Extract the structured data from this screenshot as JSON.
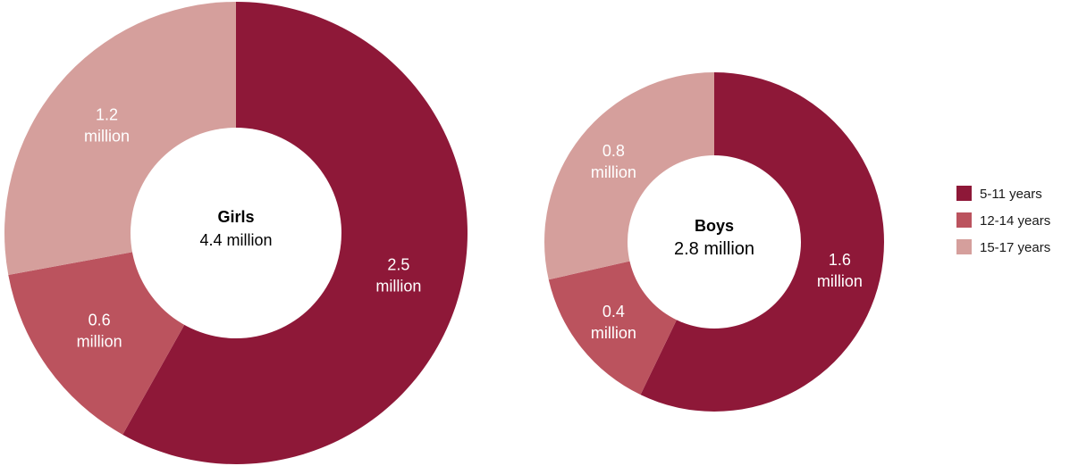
{
  "chart_data": [
    {
      "type": "pie",
      "donut": true,
      "center_title": "Girls",
      "center_value": "4.4 million",
      "slices": [
        {
          "category": "5-11 years",
          "value": 2.5,
          "label_lines": [
            "2.5",
            "million"
          ]
        },
        {
          "category": "12-14 years",
          "value": 0.6,
          "label_lines": [
            "0.6",
            "million"
          ]
        },
        {
          "category": "15-17 years",
          "value": 1.2,
          "label_lines": [
            "1.2",
            "million"
          ]
        }
      ]
    },
    {
      "type": "pie",
      "donut": true,
      "center_title": "Boys",
      "center_value": "2.8 million",
      "slices": [
        {
          "category": "5-11 years",
          "value": 1.6,
          "label_lines": [
            "1.6",
            "million"
          ]
        },
        {
          "category": "12-14 years",
          "value": 0.4,
          "label_lines": [
            "0.4",
            "million"
          ]
        },
        {
          "category": "15-17 years",
          "value": 0.8,
          "label_lines": [
            "0.8",
            "million"
          ]
        }
      ]
    }
  ],
  "legend": {
    "placement": "right",
    "items": [
      {
        "label": "5-11 years",
        "color": "#8e1838"
      },
      {
        "label": "12-14 years",
        "color": "#bb535e"
      },
      {
        "label": "15-17 years",
        "color": "#d59f9c"
      }
    ]
  }
}
